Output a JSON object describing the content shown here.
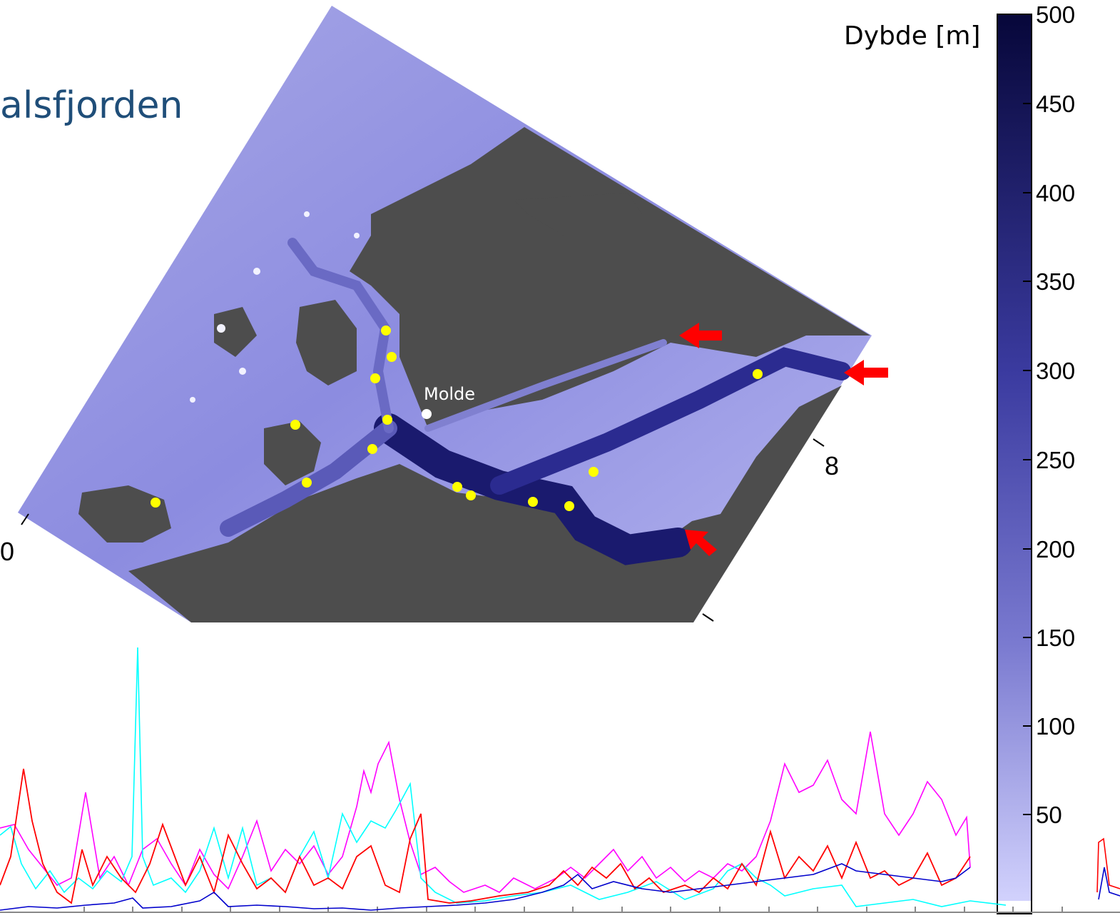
{
  "title": "alsfjorden",
  "colorbar": {
    "label": "Dybde [m]",
    "min": 0,
    "max": 500,
    "ticks": [
      "500",
      "450",
      "400",
      "350",
      "300",
      "250",
      "200",
      "150",
      "100",
      "50"
    ],
    "color_light": "#d6d6ff",
    "color_dark": "#07073a"
  },
  "map": {
    "land_color": "#4d4d4d",
    "coord_labels": [
      "8",
      "0"
    ],
    "town": "Molde",
    "station_color": "#ffff00",
    "arrow_color": "#ff0000"
  },
  "timeseries": {
    "colors": [
      "#ff00ff",
      "#00ffff",
      "#ff0000",
      "#0000cc"
    ]
  }
}
